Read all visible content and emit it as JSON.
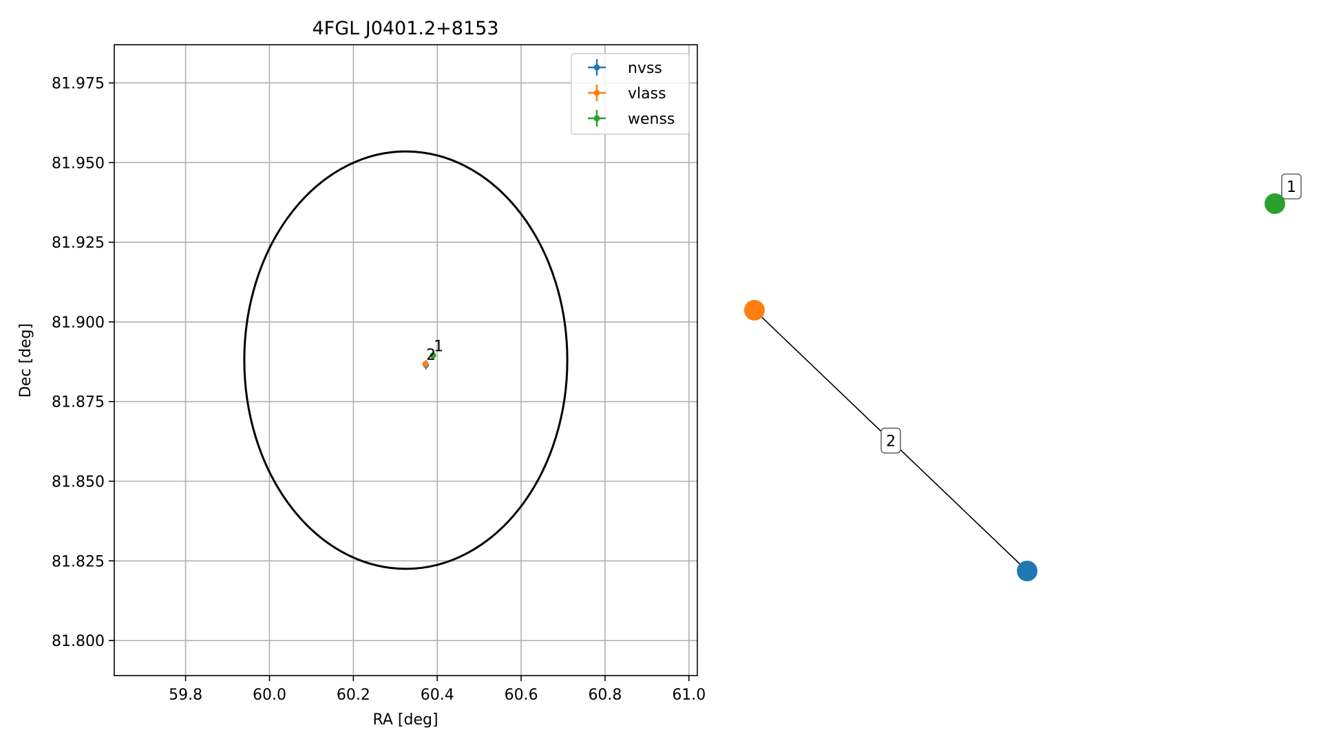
{
  "chart_data": [
    {
      "type": "scatter",
      "title": "4FGL J0401.2+8153",
      "xlabel": "RA [deg]",
      "ylabel": "Dec [deg]",
      "xlim": [
        59.63,
        61.02
      ],
      "ylim": [
        81.789,
        81.987
      ],
      "xticks": [
        59.8,
        60.0,
        60.2,
        60.4,
        60.6,
        60.8,
        61.0
      ],
      "xtick_labels": [
        "59.8",
        "60.0",
        "60.2",
        "60.4",
        "60.6",
        "60.8",
        "61.0"
      ],
      "yticks": [
        81.8,
        81.825,
        81.85,
        81.875,
        81.9,
        81.925,
        81.95,
        81.975
      ],
      "ytick_labels": [
        "81.800",
        "81.825",
        "81.850",
        "81.875",
        "81.900",
        "81.925",
        "81.950",
        "81.975"
      ],
      "grid": true,
      "legend_position": "top-right",
      "ellipse": {
        "center": [
          60.325,
          81.888
        ],
        "half_width": 0.385,
        "half_height": 0.0655,
        "color": "#000000"
      },
      "series": [
        {
          "name": "nvss",
          "color": "#1f77b4",
          "x": [
            60.373
          ],
          "y": [
            81.8865
          ],
          "xerr": [
            0.004
          ],
          "yerr": [
            0.0015
          ]
        },
        {
          "name": "vlass",
          "color": "#ff7f0e",
          "x": [
            60.372
          ],
          "y": [
            81.8868
          ],
          "xerr": [
            0.002
          ],
          "yerr": [
            0.0005
          ]
        },
        {
          "name": "wenss",
          "color": "#2ca02c",
          "x": [
            60.39
          ],
          "y": [
            81.8895
          ],
          "xerr": [
            0.004
          ],
          "yerr": [
            0.0012
          ]
        }
      ],
      "annotations": [
        {
          "text": "1",
          "x": 60.39,
          "y": 81.8895
        },
        {
          "text": "2",
          "x": 60.372,
          "y": 81.8868
        }
      ]
    },
    {
      "type": "graph",
      "nodes": [
        {
          "id": "vlass",
          "color": "#ff7f0e",
          "pos": [
            0.0,
            0.71
          ]
        },
        {
          "id": "nvss",
          "color": "#1f77b4",
          "pos": [
            0.524,
            0.0
          ]
        },
        {
          "id": "wenss",
          "color": "#2ca02c",
          "pos": [
            1.0,
            1.0
          ]
        }
      ],
      "edges": [
        {
          "source": "vlass",
          "target": "nvss",
          "label": "2"
        }
      ],
      "node_labels": [
        {
          "node": "wenss",
          "text": "1"
        }
      ]
    }
  ]
}
